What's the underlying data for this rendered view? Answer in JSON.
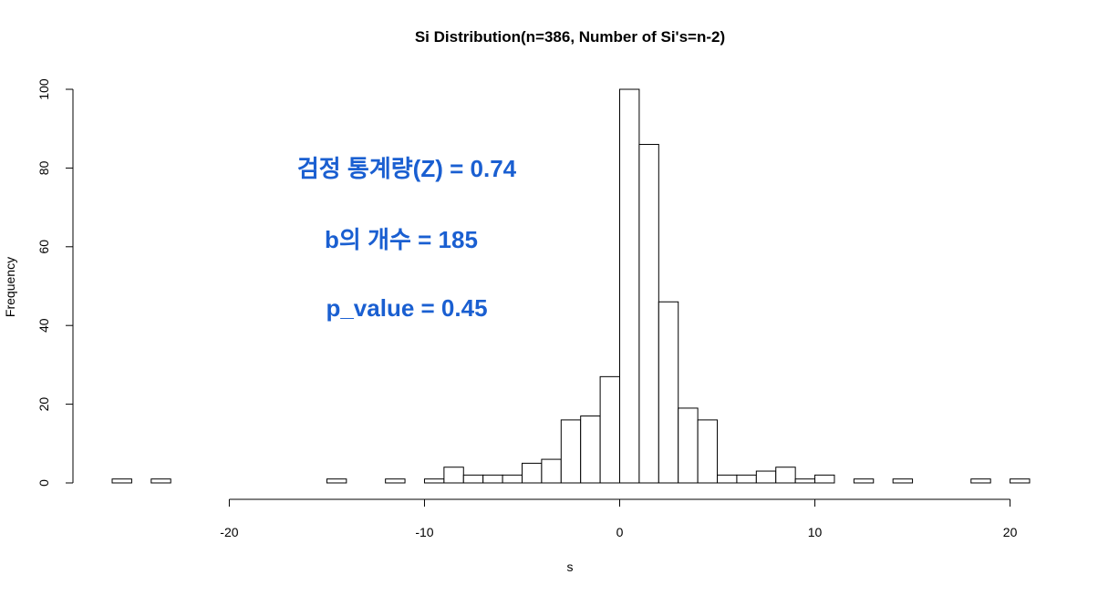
{
  "chart_data": {
    "type": "bar",
    "title": "Si Distribution(n=386, Number of Si's=n-2)",
    "xlabel": "s",
    "ylabel": "Frequency",
    "bin_width": 1,
    "bin_starts": [
      -26,
      -25,
      -24,
      -23,
      -22,
      -21,
      -20,
      -19,
      -18,
      -17,
      -16,
      -15,
      -14,
      -13,
      -12,
      -11,
      -10,
      -9,
      -8,
      -7,
      -6,
      -5,
      -4,
      -3,
      -2,
      -1,
      0,
      1,
      2,
      3,
      4,
      5,
      6,
      7,
      8,
      9,
      10,
      11,
      12,
      13,
      14,
      15,
      16,
      17,
      18,
      19,
      20
    ],
    "values": [
      1,
      0,
      1,
      0,
      0,
      0,
      0,
      0,
      0,
      0,
      0,
      1,
      0,
      0,
      1,
      0,
      1,
      4,
      2,
      2,
      2,
      5,
      6,
      16,
      17,
      27,
      100,
      86,
      46,
      19,
      16,
      2,
      2,
      3,
      4,
      1,
      2,
      0,
      1,
      0,
      1,
      0,
      0,
      0,
      1,
      0,
      1
    ],
    "xlim": [
      -26,
      21
    ],
    "ylim": [
      0,
      100
    ],
    "x_ticks": [
      -20,
      -10,
      0,
      10,
      20
    ],
    "y_ticks": [
      0,
      20,
      40,
      60,
      80,
      100
    ],
    "grid": false,
    "annotations": [
      {
        "text": "검정 통계량(Z) = 0.74",
        "color": "#1a5fd1"
      },
      {
        "text": "b의 개수 = 185",
        "color": "#1a5fd1"
      },
      {
        "text": "p_value = 0.45",
        "color": "#1a5fd1"
      }
    ]
  }
}
